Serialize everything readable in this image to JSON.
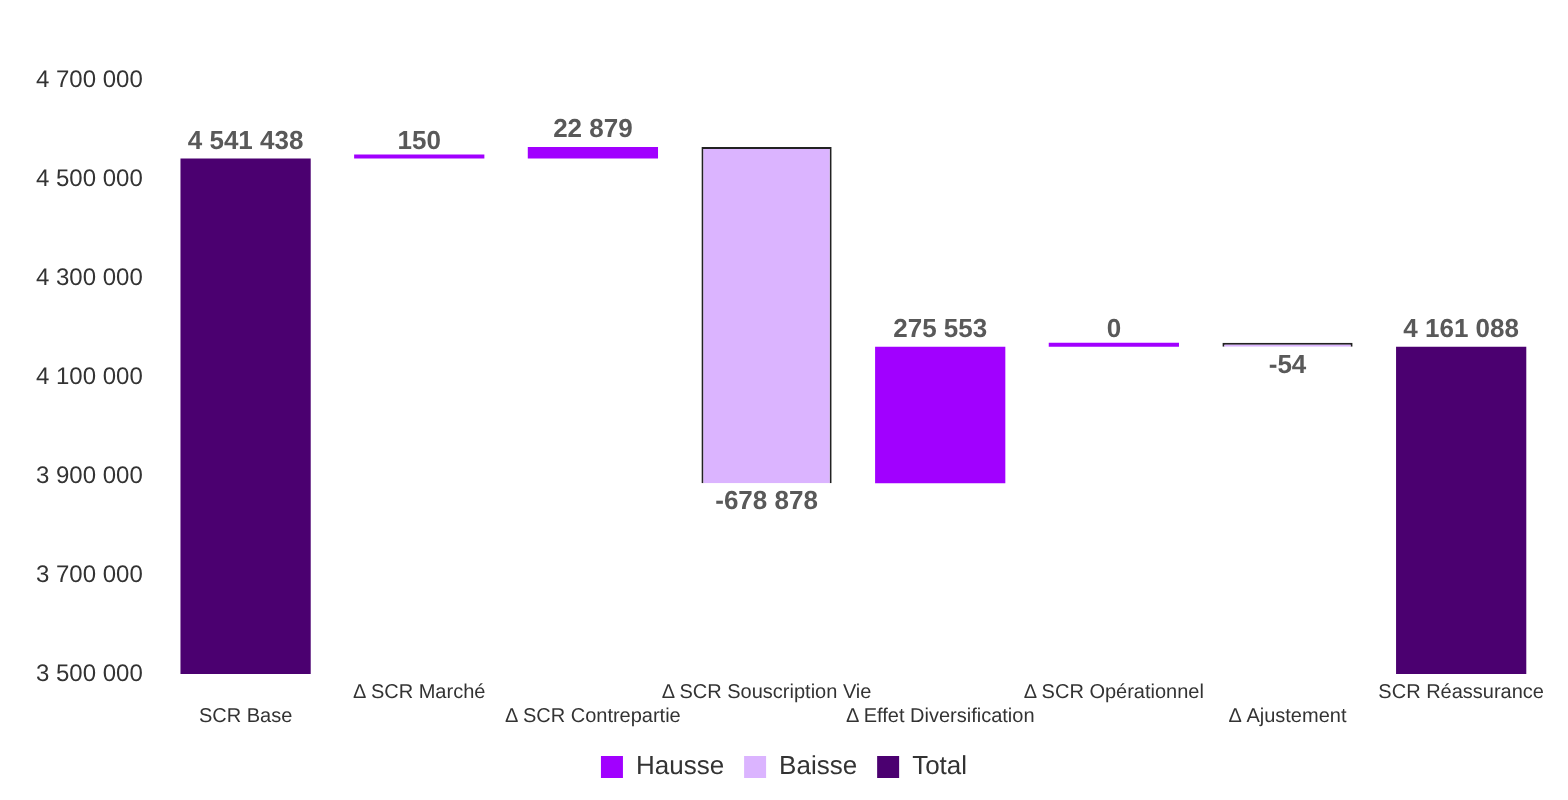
{
  "chart_data": {
    "type": "bar",
    "categories": [
      "SCR Base",
      "Δ SCR Marché",
      "Δ SCR Contrepartie",
      "Δ SCR Souscription Vie",
      "Δ Effet Diversification",
      "Δ SCR Opérationnel",
      "Δ Ajustement",
      "SCR Réassurance"
    ],
    "series": [
      {
        "name": "Hausse",
        "color": "#a100ff",
        "values": [
          null,
          150,
          22879,
          null,
          275553,
          0,
          null,
          null
        ],
        "base": [
          null,
          4541438,
          4541588,
          null,
          3885589,
          4161142,
          null,
          null
        ],
        "value_labels": [
          null,
          "150",
          "22 879",
          null,
          "275 553",
          "0",
          null,
          null
        ]
      },
      {
        "name": "Baisse",
        "color": "#dbb4ff",
        "values": [
          null,
          null,
          null,
          -678878,
          null,
          null,
          -54,
          null
        ],
        "base": [
          null,
          null,
          null,
          4564467,
          null,
          null,
          4161142,
          null
        ],
        "value_labels": [
          null,
          null,
          null,
          "-678 878",
          null,
          null,
          "-54",
          null
        ]
      },
      {
        "name": "Total",
        "color": "#4b0070",
        "values": [
          4541438,
          null,
          null,
          null,
          null,
          null,
          null,
          4161088
        ]
      }
    ],
    "data_labels": true,
    "ylim": [
      3500000,
      4700000
    ],
    "yticks": [
      {
        "value": 3500000,
        "label": "3 500 000"
      },
      {
        "value": 3700000,
        "label": "3 700 000"
      },
      {
        "value": 3900000,
        "label": "3 900 000"
      },
      {
        "value": 4100000,
        "label": "4 100 000"
      },
      {
        "value": 4300000,
        "label": "4 300 000"
      },
      {
        "value": 4500000,
        "label": "4 500 000"
      },
      {
        "value": 4700000,
        "label": "4 700 000"
      }
    ],
    "grid": false,
    "legend": "bottom"
  }
}
